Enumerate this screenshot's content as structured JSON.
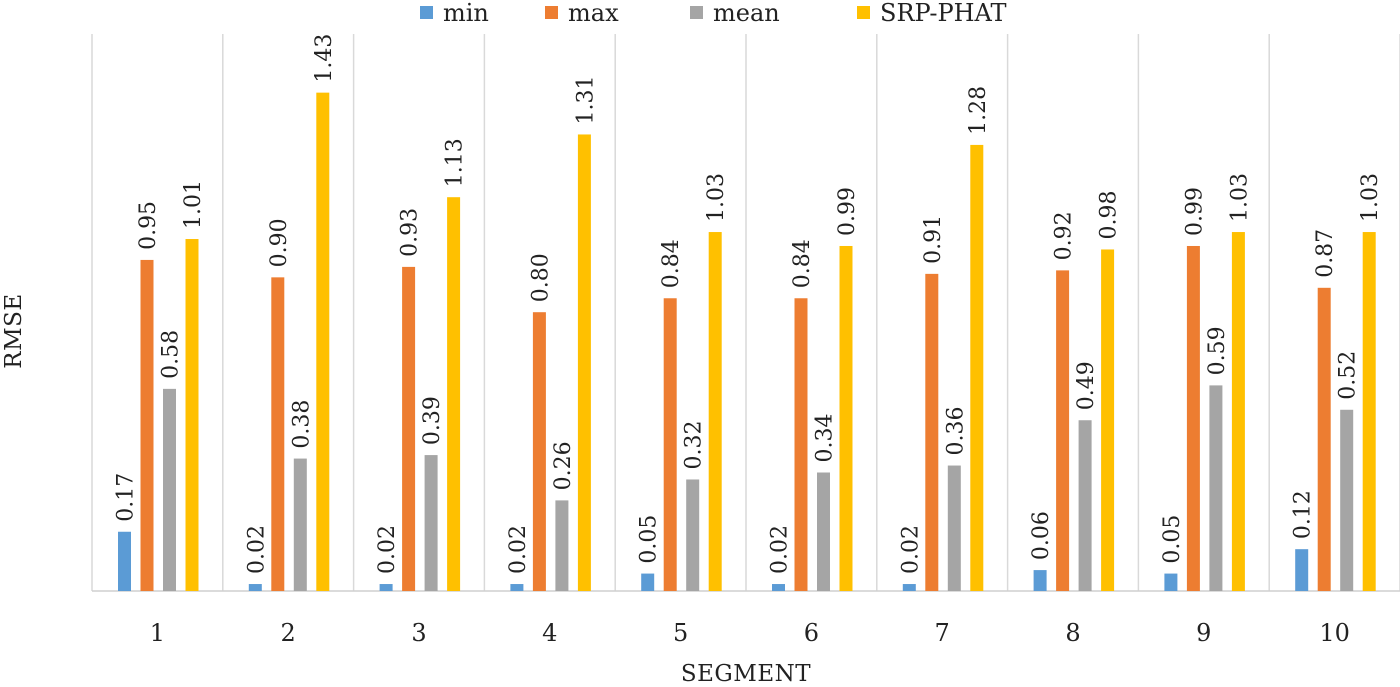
{
  "chart_data": {
    "type": "bar",
    "title": "",
    "xlabel": "SEGMENT",
    "ylabel": "RMSE",
    "categories": [
      "1",
      "2",
      "3",
      "4",
      "5",
      "6",
      "7",
      "8",
      "9",
      "10"
    ],
    "ylim": [
      0,
      1.6
    ],
    "grid": {
      "vertical_separators": true,
      "horizontal": false
    },
    "legend": {
      "placement": "top"
    },
    "series": [
      {
        "name": "min",
        "color": "#5B9BD5",
        "values": [
          0.17,
          0.02,
          0.02,
          0.02,
          0.05,
          0.02,
          0.02,
          0.06,
          0.05,
          0.12
        ],
        "labels": [
          "0.17",
          "0.02",
          "0.02",
          "0.02",
          "0.05",
          "0.02",
          "0.02",
          "0.06",
          "0.05",
          "0.12"
        ]
      },
      {
        "name": "max",
        "color": "#ED7D31",
        "values": [
          0.95,
          0.9,
          0.93,
          0.8,
          0.84,
          0.84,
          0.91,
          0.92,
          0.99,
          0.87
        ],
        "labels": [
          "0.95",
          "0.90",
          "0.93",
          "0.80",
          "0.84",
          "0.84",
          "0.91",
          "0.92",
          "0.99",
          "0.87"
        ]
      },
      {
        "name": "mean",
        "color": "#A5A5A5",
        "values": [
          0.58,
          0.38,
          0.39,
          0.26,
          0.32,
          0.34,
          0.36,
          0.49,
          0.59,
          0.52
        ],
        "labels": [
          "0.58",
          "0.38",
          "0.39",
          "0.26",
          "0.32",
          "0.34",
          "0.36",
          "0.49",
          "0.59",
          "0.52"
        ]
      },
      {
        "name": "SRP-PHAT",
        "color": "#FFC000",
        "values": [
          1.01,
          1.43,
          1.13,
          1.31,
          1.03,
          0.99,
          1.28,
          0.98,
          1.03,
          1.03
        ],
        "labels": [
          "1.01",
          "1.43",
          "1.13",
          "1.31",
          "1.03",
          "0.99",
          "1.28",
          "0.98",
          "1.03",
          "1.03"
        ]
      }
    ]
  }
}
